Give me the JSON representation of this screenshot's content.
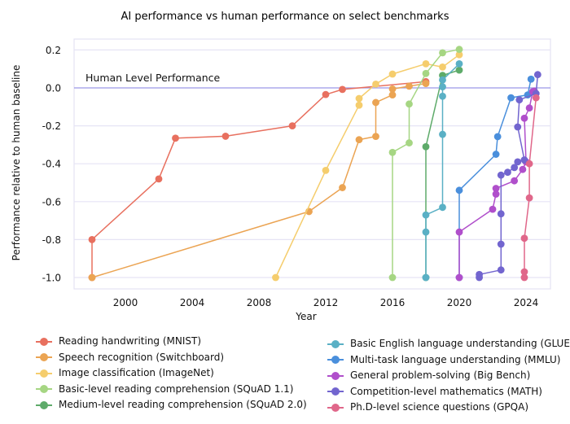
{
  "chart_data": {
    "type": "line",
    "title": "AI performance vs human performance on select benchmarks",
    "xlabel": "Year",
    "ylabel": "Performance relative to human baseline",
    "xlim": [
      1997,
      2025.2
    ],
    "ylim": [
      -1.05,
      0.22
    ],
    "xticks": [
      2000,
      2004,
      2008,
      2012,
      2016,
      2020,
      2024
    ],
    "yticks": [
      0.2,
      0.0,
      -0.2,
      -0.4,
      -0.6,
      -0.8,
      -1.0
    ],
    "ytick_labels": [
      "0.2",
      "0.0",
      "-0.2",
      "-0.4",
      "-0.6",
      "-0.8",
      "-1.0"
    ],
    "grid": true,
    "reference_line": {
      "y": 0.0,
      "label": "Human Level Performance",
      "color": "#9b97e6"
    },
    "legend_position": "bottom",
    "series": [
      {
        "name": "Reading handwriting (MNIST)",
        "color": "#e8705f",
        "points": [
          [
            1998,
            -1.0
          ],
          [
            1998,
            -0.8
          ],
          [
            2002,
            -0.48
          ],
          [
            2003,
            -0.265
          ],
          [
            2006,
            -0.255
          ],
          [
            2010,
            -0.2
          ],
          [
            2012,
            -0.035
          ],
          [
            2013,
            -0.008
          ],
          [
            2018,
            0.033
          ]
        ]
      },
      {
        "name": "Speech recognition (Switchboard)",
        "color": "#eba453",
        "points": [
          [
            1998,
            -1.0
          ],
          [
            2011,
            -0.652
          ],
          [
            2013,
            -0.526
          ],
          [
            2014,
            -0.273
          ],
          [
            2015,
            -0.256
          ],
          [
            2015,
            -0.077
          ],
          [
            2016,
            -0.037
          ],
          [
            2016,
            -0.006
          ],
          [
            2017,
            0.009
          ],
          [
            2018,
            0.023
          ]
        ]
      },
      {
        "name": "Image classification (ImageNet)",
        "color": "#f5cd6d",
        "points": [
          [
            2009,
            -1.0
          ],
          [
            2012,
            -0.435
          ],
          [
            2014,
            -0.091
          ],
          [
            2014,
            -0.056
          ],
          [
            2015,
            0.02
          ],
          [
            2016,
            0.073
          ],
          [
            2018,
            0.127
          ],
          [
            2019,
            0.11
          ],
          [
            2020,
            0.175
          ]
        ]
      },
      {
        "name": "Basic-level reading comprehension (SQuAD 1.1)",
        "color": "#a6d683",
        "points": [
          [
            2016,
            -1.0
          ],
          [
            2016,
            -0.34
          ],
          [
            2017,
            -0.29
          ],
          [
            2017,
            -0.085
          ],
          [
            2018,
            0.076
          ],
          [
            2019,
            0.185
          ],
          [
            2020,
            0.203
          ]
        ]
      },
      {
        "name": "Medium-level reading comprehension (SQuAD 2.0)",
        "color": "#5eab6a",
        "points": [
          [
            2018,
            -1.0
          ],
          [
            2018,
            -0.31
          ],
          [
            2019,
            0.066
          ],
          [
            2020,
            0.094
          ]
        ]
      },
      {
        "name": "Basic English language understanding (GLUE)",
        "color": "#5ab0c5",
        "points": [
          [
            2018,
            -1.0
          ],
          [
            2018,
            -0.76
          ],
          [
            2018,
            -0.67
          ],
          [
            2019,
            -0.63
          ],
          [
            2019,
            -0.245
          ],
          [
            2019,
            -0.044
          ],
          [
            2019,
            0.006
          ],
          [
            2019,
            0.042
          ],
          [
            2020,
            0.127
          ]
        ]
      },
      {
        "name": "Multi-task language understanding (MMLU)",
        "color": "#4a8fdc",
        "points": [
          [
            2020,
            -1.0
          ],
          [
            2020,
            -0.54
          ],
          [
            2022.2,
            -0.35
          ],
          [
            2022.3,
            -0.257
          ],
          [
            2023.1,
            -0.052
          ],
          [
            2024.1,
            -0.037
          ],
          [
            2024.3,
            0.046
          ]
        ]
      },
      {
        "name": "General problem-solving (Big Bench)",
        "color": "#b04fcb",
        "points": [
          [
            2020,
            -1.0
          ],
          [
            2020,
            -0.76
          ],
          [
            2022,
            -0.64
          ],
          [
            2022.2,
            -0.56
          ],
          [
            2022.2,
            -0.53
          ],
          [
            2023.3,
            -0.49
          ],
          [
            2023.8,
            -0.43
          ],
          [
            2024,
            -0.39
          ],
          [
            2023.9,
            -0.16
          ],
          [
            2024.2,
            -0.106
          ],
          [
            2024.4,
            -0.02
          ],
          [
            2024.5,
            -0.017
          ]
        ]
      },
      {
        "name": "Competition-level mathematics (MATH)",
        "color": "#7265cf",
        "points": [
          [
            2021.2,
            -1.0
          ],
          [
            2021.2,
            -0.984
          ],
          [
            2022.5,
            -0.96
          ],
          [
            2022.5,
            -0.824
          ],
          [
            2022.5,
            -0.664
          ],
          [
            2022.5,
            -0.46
          ],
          [
            2022.9,
            -0.445
          ],
          [
            2023.3,
            -0.42
          ],
          [
            2023.5,
            -0.39
          ],
          [
            2023.9,
            -0.38
          ],
          [
            2023.5,
            -0.206
          ],
          [
            2023.6,
            -0.063
          ],
          [
            2024.6,
            -0.03
          ],
          [
            2024.7,
            0.07
          ]
        ]
      },
      {
        "name": "Ph.D-level science questions (GPQA)",
        "color": "#e0678a",
        "points": [
          [
            2023.9,
            -1.0
          ],
          [
            2023.9,
            -0.97
          ],
          [
            2023.9,
            -0.793
          ],
          [
            2024.2,
            -0.58
          ],
          [
            2024.2,
            -0.4
          ],
          [
            2024.6,
            -0.052
          ]
        ]
      }
    ]
  }
}
